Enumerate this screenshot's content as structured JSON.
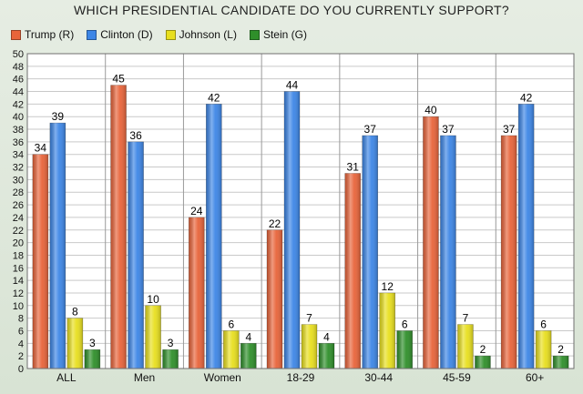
{
  "chart_data": {
    "type": "bar",
    "title": "WHICH PRESIDENTIAL CANDIDATE DO YOU CURRENTLY SUPPORT?",
    "xlabel": "",
    "ylabel": "",
    "ylim": [
      0,
      50
    ],
    "ytick_step": 2,
    "grid": true,
    "legend_position": "top-left",
    "categories": [
      "ALL",
      "Men",
      "Women",
      "18-29",
      "30-44",
      "45-59",
      "60+"
    ],
    "series": [
      {
        "name": "Trump (R)",
        "color": "#e8643a",
        "values": [
          34,
          45,
          24,
          22,
          31,
          40,
          37
        ]
      },
      {
        "name": "Clinton (D)",
        "color": "#3d86e6",
        "values": [
          39,
          36,
          42,
          44,
          37,
          37,
          42
        ]
      },
      {
        "name": "Johnson (L)",
        "color": "#e8df1e",
        "values": [
          8,
          10,
          6,
          7,
          12,
          7,
          6
        ]
      },
      {
        "name": "Stein (G)",
        "color": "#2f8f2a",
        "values": [
          3,
          3,
          4,
          4,
          6,
          2,
          2
        ]
      }
    ]
  }
}
